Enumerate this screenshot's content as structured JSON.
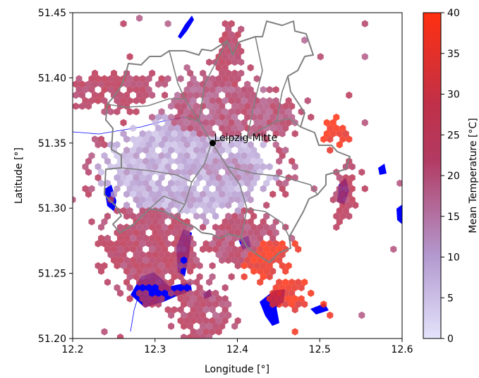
{
  "chart_data": {
    "type": "heatmap",
    "title": "",
    "xlabel": "Longitude [°]",
    "ylabel": "Latitude [°]",
    "xlim": [
      12.2,
      12.6
    ],
    "ylim": [
      51.2,
      51.45
    ],
    "xticks": [
      "12.2",
      "12.3",
      "12.4",
      "12.5",
      "12.6"
    ],
    "yticks": [
      "51.20",
      "51.25",
      "51.30",
      "51.35",
      "51.40",
      "51.45"
    ],
    "colorbar": {
      "label": "Mean Temperature [°C]",
      "range": [
        0,
        40
      ],
      "ticks": [
        "0",
        "5",
        "10",
        "15",
        "20",
        "25",
        "30",
        "35",
        "40"
      ],
      "colors": [
        "#e3e3fb",
        "#b39ad0",
        "#b23a62",
        "#c03048",
        "#ff3010"
      ]
    },
    "annotation": {
      "text": "Leipzig-Mitte",
      "lon": 12.37,
      "lat": 51.35
    },
    "layers": {
      "water_color": "#0000ff",
      "boundary_color": "#808080",
      "hexbin": "mean temperature per hexagonal cell"
    },
    "hexbin_clusters": [
      {
        "lon": 12.37,
        "lat": 51.33,
        "r_lon": 0.055,
        "r_lat": 0.02,
        "temp": 12
      },
      {
        "lon": 12.34,
        "lat": 51.33,
        "r_lon": 0.09,
        "r_lat": 0.035,
        "temp": 8
      },
      {
        "lon": 12.37,
        "lat": 51.375,
        "r_lon": 0.05,
        "r_lat": 0.025,
        "temp": 20
      },
      {
        "lon": 12.39,
        "lat": 51.41,
        "r_lon": 0.015,
        "r_lat": 0.025,
        "temp": 24
      },
      {
        "lon": 12.25,
        "lat": 51.39,
        "r_lon": 0.05,
        "r_lat": 0.012,
        "temp": 24
      },
      {
        "lon": 12.43,
        "lat": 51.37,
        "r_lon": 0.04,
        "r_lat": 0.015,
        "temp": 21
      },
      {
        "lon": 12.41,
        "lat": 51.275,
        "r_lon": 0.04,
        "r_lat": 0.02,
        "temp": 22
      },
      {
        "lon": 12.43,
        "lat": 51.265,
        "r_lon": 0.03,
        "r_lat": 0.015,
        "temp": 37
      },
      {
        "lon": 12.46,
        "lat": 51.235,
        "r_lon": 0.02,
        "r_lat": 0.01,
        "temp": 37
      },
      {
        "lon": 12.52,
        "lat": 51.355,
        "r_lon": 0.012,
        "r_lat": 0.01,
        "temp": 38
      },
      {
        "lon": 12.3,
        "lat": 51.27,
        "r_lon": 0.05,
        "r_lat": 0.03,
        "temp": 23
      },
      {
        "lon": 12.36,
        "lat": 51.22,
        "r_lon": 0.03,
        "r_lat": 0.02,
        "temp": 22
      },
      {
        "lon": 12.53,
        "lat": 51.31,
        "r_lon": 0.01,
        "r_lat": 0.02,
        "temp": 24
      }
    ]
  }
}
